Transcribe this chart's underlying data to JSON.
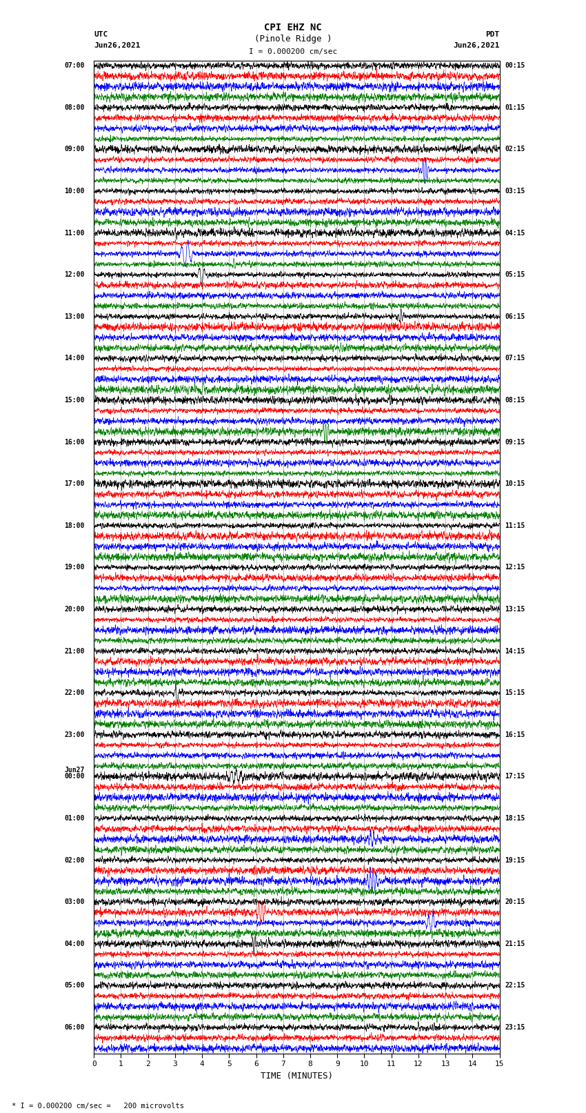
{
  "title_line1": "CPI EHZ NC",
  "title_line2": "(Pinole Ridge )",
  "scale_label": "I = 0.000200 cm/sec",
  "left_header_line1": "UTC",
  "left_header_line2": "Jun26,2021",
  "right_header_line1": "PDT",
  "right_header_line2": "Jun26,2021",
  "xlabel": "TIME (MINUTES)",
  "bottom_note": "* I = 0.000200 cm/sec =   200 microvolts",
  "xmin": 0,
  "xmax": 15,
  "trace_color_cycle": [
    "black",
    "red",
    "blue",
    "green"
  ],
  "left_times": [
    "07:00",
    "",
    "",
    "",
    "08:00",
    "",
    "",
    "",
    "09:00",
    "",
    "",
    "",
    "10:00",
    "",
    "",
    "",
    "11:00",
    "",
    "",
    "",
    "12:00",
    "",
    "",
    "",
    "13:00",
    "",
    "",
    "",
    "14:00",
    "",
    "",
    "",
    "15:00",
    "",
    "",
    "",
    "16:00",
    "",
    "",
    "",
    "17:00",
    "",
    "",
    "",
    "18:00",
    "",
    "",
    "",
    "19:00",
    "",
    "",
    "",
    "20:00",
    "",
    "",
    "",
    "21:00",
    "",
    "",
    "",
    "22:00",
    "",
    "",
    "",
    "23:00",
    "",
    "",
    "",
    "Jun27\n00:00",
    "",
    "",
    "",
    "01:00",
    "",
    "",
    "",
    "02:00",
    "",
    "",
    "",
    "03:00",
    "",
    "",
    "",
    "04:00",
    "",
    "",
    "",
    "05:00",
    "",
    "",
    "",
    "06:00",
    "",
    ""
  ],
  "right_times_map": {
    "0": "00:15",
    "4": "01:15",
    "8": "02:15",
    "12": "03:15",
    "16": "04:15",
    "20": "05:15",
    "24": "06:15",
    "28": "07:15",
    "32": "08:15",
    "36": "09:15",
    "40": "10:15",
    "44": "11:15",
    "48": "12:15",
    "52": "13:15",
    "56": "14:15",
    "60": "15:15",
    "64": "16:15",
    "68": "17:15",
    "72": "18:15",
    "76": "19:15",
    "80": "20:15",
    "84": "21:15",
    "88": "22:15",
    "92": "23:15"
  },
  "noise_amplitude": 0.28,
  "bg_color": "white",
  "grid_color": "#999999",
  "grid_linewidth": 0.5,
  "trace_linewidth": 0.5
}
